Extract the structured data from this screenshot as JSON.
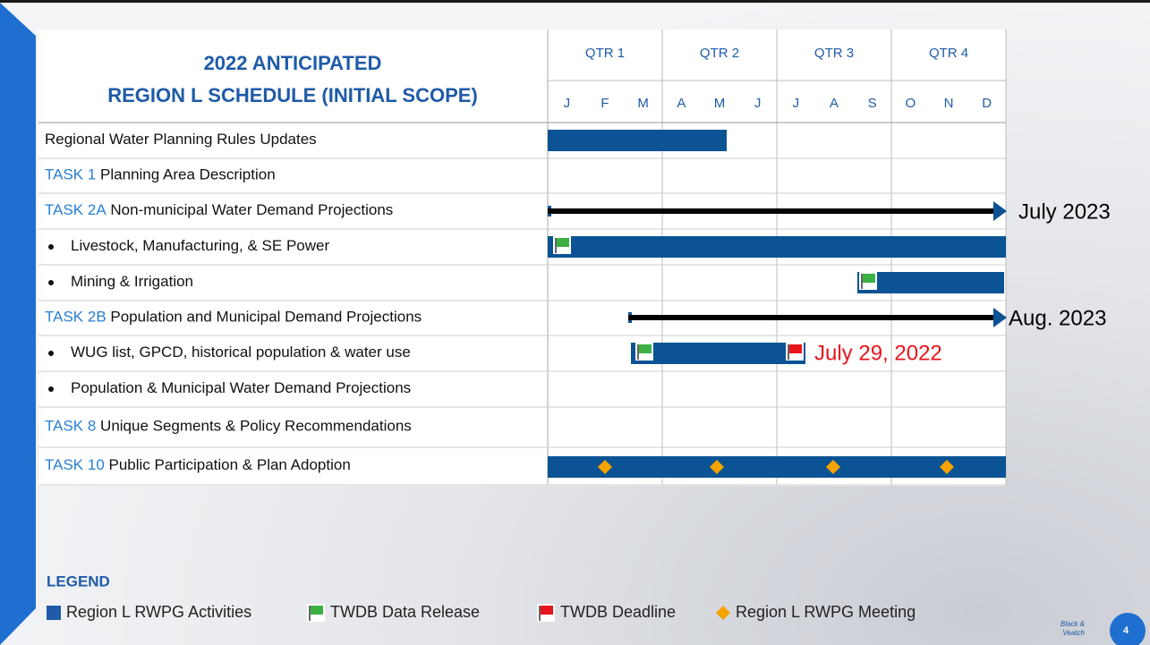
{
  "header": {
    "title_lines": [
      "2022 ANTICIPATED",
      "REGION L SCHEDULE (INITIAL SCOPE)"
    ],
    "quarters": [
      "QTR 1",
      "QTR 2",
      "QTR 3",
      "QTR 4"
    ],
    "months": [
      "J",
      "F",
      "M",
      "A",
      "M",
      "J",
      "J",
      "A",
      "S",
      "O",
      "N",
      "D"
    ]
  },
  "rows": [
    {
      "task": null,
      "label": "Regional Water Planning Rules Updates",
      "bullet": false
    },
    {
      "task": "TASK 1",
      "label": "Planning Area Description",
      "bullet": false
    },
    {
      "task": "TASK 2A",
      "label": "Non-municipal Water Demand Projections",
      "bullet": false
    },
    {
      "task": null,
      "label": "Livestock, Manufacturing, & SE Power",
      "bullet": true
    },
    {
      "task": null,
      "label": "Mining & Irrigation",
      "bullet": true
    },
    {
      "task": "TASK 2B",
      "label": "Population and Municipal Demand Projections",
      "bullet": false
    },
    {
      "task": null,
      "label": "WUG list, GPCD, historical population & water use",
      "bullet": true
    },
    {
      "task": null,
      "label": "Population & Municipal Water Demand Projections",
      "bullet": true
    },
    {
      "task": "TASK 8",
      "label": "Unique Segments & Policy Recommendations",
      "bullet": false
    },
    {
      "task": "TASK 10",
      "label": "Public Participation & Plan Adoption",
      "bullet": false
    }
  ],
  "annotations": {
    "task2a_end": "July 2023",
    "task2b_end": "Aug. 2023",
    "deadline": "July 29, 2022"
  },
  "legend": {
    "title": "LEGEND",
    "items": [
      "Region L RWPG Activities",
      "TWDB Data Release",
      "TWDB Deadline",
      "Region L RWPG Meeting"
    ]
  },
  "footer": {
    "brand_lines": [
      "Black &",
      "Veatch"
    ],
    "page_number": "4"
  }
}
